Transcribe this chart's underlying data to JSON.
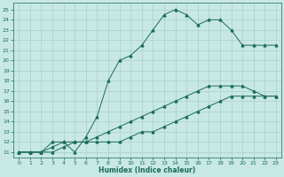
{
  "xlabel": "Humidex (Indice chaleur)",
  "bg_color": "#c8e8e4",
  "line_color": "#1a6b5a",
  "grid_color": "#a8d0cc",
  "ylim": [
    10.5,
    25.7
  ],
  "xlim": [
    -0.5,
    23.5
  ],
  "yticks": [
    11,
    12,
    13,
    14,
    15,
    16,
    17,
    18,
    19,
    20,
    21,
    22,
    23,
    24,
    25
  ],
  "xticks": [
    0,
    1,
    2,
    3,
    4,
    5,
    6,
    7,
    8,
    9,
    10,
    11,
    12,
    13,
    14,
    15,
    16,
    17,
    18,
    19,
    20,
    21,
    22,
    23
  ],
  "curve1_x": [
    0,
    1,
    2,
    3,
    4,
    5,
    6,
    7,
    8,
    9,
    10,
    11,
    12,
    13,
    14,
    15,
    16,
    17,
    18,
    19,
    20,
    21,
    22,
    23
  ],
  "curve1_y": [
    11,
    11,
    11,
    12,
    12,
    11,
    12.5,
    14.5,
    18,
    20,
    20.5,
    21.5,
    23,
    24.5,
    25,
    24.5,
    23.5,
    24,
    24,
    23,
    21.5,
    21.5,
    21.5,
    21.5
  ],
  "curve2_x": [
    0,
    1,
    2,
    3,
    4,
    5,
    6,
    7,
    8,
    9,
    10,
    11,
    12,
    13,
    14,
    15,
    16,
    17,
    18,
    19,
    20,
    21,
    22,
    23
  ],
  "curve2_y": [
    11,
    11,
    11,
    11,
    11.5,
    12,
    12,
    12,
    12,
    12,
    12.5,
    13,
    13,
    13.5,
    14,
    14.5,
    15,
    15.5,
    16,
    16.5,
    16.5,
    16.5,
    16.5,
    16.5
  ],
  "curve3_x": [
    0,
    1,
    2,
    3,
    4,
    5,
    6,
    7,
    8,
    9,
    10,
    11,
    12,
    13,
    14,
    15,
    16,
    17,
    18,
    19,
    20,
    21,
    22,
    23
  ],
  "curve3_y": [
    11,
    11,
    11,
    11.5,
    12,
    12,
    12,
    12.5,
    13,
    13.5,
    14,
    14.5,
    15,
    15.5,
    16,
    16.5,
    17,
    17.5,
    17.5,
    17.5,
    17.5,
    17,
    16.5,
    16.5
  ]
}
